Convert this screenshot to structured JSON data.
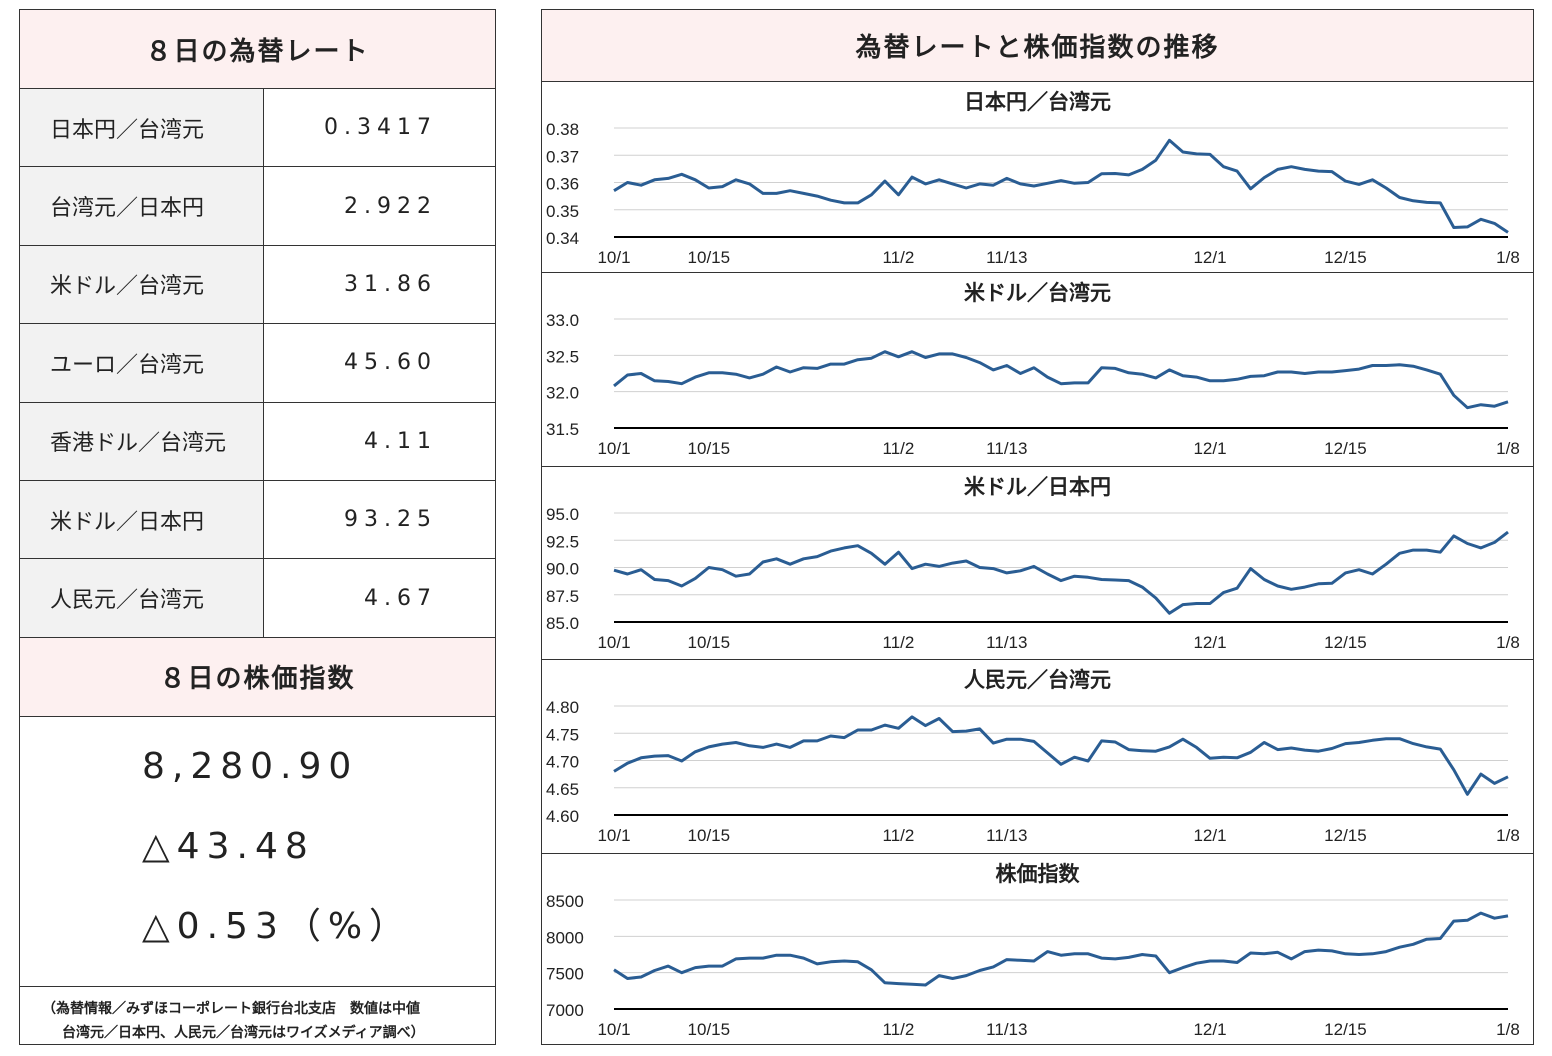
{
  "left": {
    "rates_title": "８日の為替レート",
    "rates": [
      {
        "label": "日本円／台湾元",
        "value": "0.3417"
      },
      {
        "label": "台湾元／日本円",
        "value": "2.922"
      },
      {
        "label": "米ドル／台湾元",
        "value": "31.86"
      },
      {
        "label": "ユーロ／台湾元",
        "value": "45.60"
      },
      {
        "label": "香港ドル／台湾元",
        "value": "4.11"
      },
      {
        "label": "米ドル／日本円",
        "value": "93.25"
      },
      {
        "label": "人民元／台湾元",
        "value": "4.67"
      }
    ],
    "stock_title": "８日の株価指数",
    "stock_value": "8,280.90",
    "stock_change": "△43.48",
    "stock_change_pct": "△0.53（%）",
    "note_line1": "（為替情報／みずほコーポレート銀行台北支店　数値は中値",
    "note_line2": "台湾元／日本円、人民元／台湾元はワイズメディア調べ）"
  },
  "right_title": "為替レートと株価指数の推移",
  "chart_data": [
    {
      "type": "line",
      "title": "日本円／台湾元",
      "x_ticks": [
        "10/1",
        "10/15",
        "11/2",
        "11/13",
        "12/1",
        "12/15",
        "1/8"
      ],
      "y_ticks": [
        "0.38",
        "0.37",
        "0.36",
        "0.35",
        "0.34"
      ],
      "ylim": [
        0.34,
        0.38
      ],
      "color": "#2a5d93",
      "values": [
        0.357,
        0.36,
        0.359,
        0.361,
        0.3615,
        0.363,
        0.361,
        0.358,
        0.3585,
        0.361,
        0.3595,
        0.356,
        0.356,
        0.357,
        0.356,
        0.355,
        0.3535,
        0.3525,
        0.3525,
        0.3555,
        0.3605,
        0.3555,
        0.362,
        0.3595,
        0.361,
        0.3595,
        0.358,
        0.3595,
        0.359,
        0.3615,
        0.3595,
        0.3587,
        0.3597,
        0.3607,
        0.3597,
        0.36,
        0.3632,
        0.3633,
        0.3628,
        0.3648,
        0.3682,
        0.3755,
        0.3712,
        0.3705,
        0.3703,
        0.3658,
        0.3642,
        0.3577,
        0.3618,
        0.3648,
        0.3658,
        0.3648,
        0.3642,
        0.364,
        0.3605,
        0.3593,
        0.361,
        0.358,
        0.3545,
        0.3533,
        0.3527,
        0.3525,
        0.3435,
        0.3437,
        0.3465,
        0.345,
        0.3417
      ]
    },
    {
      "type": "line",
      "title": "米ドル／台湾元",
      "x_ticks": [
        "10/1",
        "10/15",
        "11/2",
        "11/13",
        "12/1",
        "12/15",
        "1/8"
      ],
      "y_ticks": [
        "33.0",
        "32.5",
        "32.0",
        "31.5"
      ],
      "ylim": [
        31.5,
        33.0
      ],
      "color": "#2a5d93",
      "values": [
        32.08,
        32.23,
        32.25,
        32.15,
        32.14,
        32.11,
        32.2,
        32.26,
        32.26,
        32.24,
        32.19,
        32.24,
        32.34,
        32.27,
        32.33,
        32.32,
        32.38,
        32.38,
        32.44,
        32.46,
        32.55,
        32.48,
        32.55,
        32.47,
        32.52,
        32.52,
        32.47,
        32.4,
        32.3,
        32.36,
        32.25,
        32.33,
        32.2,
        32.11,
        32.12,
        32.12,
        32.33,
        32.32,
        32.26,
        32.24,
        32.19,
        32.3,
        32.22,
        32.2,
        32.15,
        32.15,
        32.17,
        32.21,
        32.22,
        32.27,
        32.27,
        32.25,
        32.27,
        32.27,
        32.29,
        32.31,
        32.36,
        32.36,
        32.37,
        32.35,
        32.3,
        32.24,
        31.95,
        31.78,
        31.82,
        31.8,
        31.86
      ]
    },
    {
      "type": "line",
      "title": "米ドル／日本円",
      "x_ticks": [
        "10/1",
        "10/15",
        "11/2",
        "11/13",
        "12/1",
        "12/15",
        "1/8"
      ],
      "y_ticks": [
        "95.0",
        "92.5",
        "90.0",
        "87.5",
        "85.0"
      ],
      "ylim": [
        85.0,
        95.0
      ],
      "color": "#2a5d93",
      "values": [
        89.75,
        89.4,
        89.8,
        88.9,
        88.8,
        88.3,
        89.0,
        90.0,
        89.8,
        89.2,
        89.4,
        90.5,
        90.8,
        90.3,
        90.8,
        91.0,
        91.5,
        91.8,
        92.0,
        91.3,
        90.3,
        91.4,
        89.9,
        90.3,
        90.1,
        90.4,
        90.6,
        90.0,
        89.9,
        89.5,
        89.7,
        90.1,
        89.4,
        88.8,
        89.2,
        89.1,
        88.9,
        88.85,
        88.8,
        88.2,
        87.2,
        85.8,
        86.6,
        86.7,
        86.7,
        87.7,
        88.1,
        89.9,
        88.9,
        88.3,
        88.0,
        88.2,
        88.5,
        88.55,
        89.5,
        89.8,
        89.4,
        90.3,
        91.3,
        91.6,
        91.6,
        91.4,
        92.9,
        92.2,
        91.8,
        92.3,
        93.25
      ]
    },
    {
      "type": "line",
      "title": "人民元／台湾元",
      "x_ticks": [
        "10/1",
        "10/15",
        "11/2",
        "11/13",
        "12/1",
        "12/15",
        "1/8"
      ],
      "y_ticks": [
        "4.80",
        "4.75",
        "4.70",
        "4.65",
        "4.60"
      ],
      "ylim": [
        4.6,
        4.8
      ],
      "color": "#2a5d93",
      "values": [
        4.68,
        4.695,
        4.705,
        4.708,
        4.709,
        4.699,
        4.716,
        4.725,
        4.73,
        4.733,
        4.727,
        4.724,
        4.73,
        4.724,
        4.736,
        4.736,
        4.745,
        4.742,
        4.756,
        4.756,
        4.765,
        4.759,
        4.78,
        4.764,
        4.777,
        4.753,
        4.754,
        4.758,
        4.732,
        4.739,
        4.739,
        4.735,
        4.714,
        4.693,
        4.706,
        4.699,
        4.736,
        4.734,
        4.72,
        4.718,
        4.717,
        4.725,
        4.739,
        4.724,
        4.704,
        4.706,
        4.705,
        4.715,
        4.733,
        4.72,
        4.723,
        4.719,
        4.717,
        4.722,
        4.731,
        4.733,
        4.737,
        4.74,
        4.74,
        4.731,
        4.725,
        4.721,
        4.683,
        4.638,
        4.675,
        4.658,
        4.67
      ]
    },
    {
      "type": "line",
      "title": "株価指数",
      "x_ticks": [
        "10/1",
        "10/15",
        "11/2",
        "11/13",
        "12/1",
        "12/15",
        "1/8"
      ],
      "y_ticks": [
        "8500",
        "8000",
        "7500",
        "7000"
      ],
      "ylim": [
        7000,
        8500
      ],
      "color": "#2a5d93",
      "values": [
        7540,
        7420,
        7440,
        7530,
        7590,
        7500,
        7570,
        7590,
        7590,
        7690,
        7700,
        7700,
        7740,
        7740,
        7700,
        7620,
        7650,
        7660,
        7650,
        7540,
        7360,
        7350,
        7340,
        7330,
        7460,
        7420,
        7460,
        7530,
        7580,
        7680,
        7670,
        7660,
        7790,
        7740,
        7760,
        7760,
        7700,
        7690,
        7710,
        7750,
        7730,
        7500,
        7570,
        7630,
        7660,
        7660,
        7640,
        7770,
        7760,
        7780,
        7690,
        7790,
        7810,
        7800,
        7760,
        7750,
        7760,
        7790,
        7850,
        7890,
        7960,
        7970,
        8210,
        8220,
        8320,
        8250,
        8280.9
      ]
    }
  ]
}
